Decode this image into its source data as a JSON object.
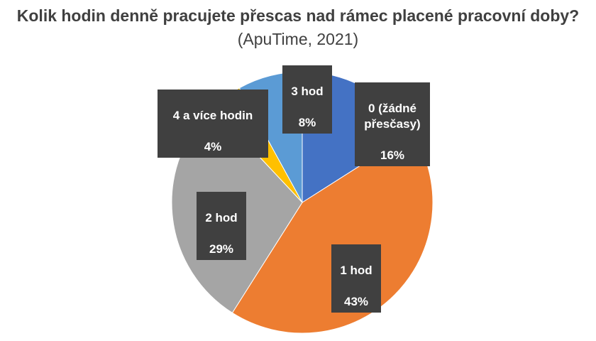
{
  "chart_data": {
    "type": "pie",
    "title_main": "Kolik hodin denně pracujete přescas nad rámec placené pracovní doby?",
    "title_source": "(ApuTime, 2021)",
    "categories": [
      "0 (žádné přesčasy)",
      "1 hod",
      "2 hod",
      "4 a více hodin",
      "3 hod"
    ],
    "values": [
      16,
      43,
      29,
      4,
      8
    ],
    "percent_labels": [
      "16%",
      "43%",
      "29%",
      "4%",
      "8%"
    ],
    "colors": [
      "#4472C4",
      "#ED7D31",
      "#A5A5A5",
      "#FFC000",
      "#5B9BD5"
    ],
    "start_angle_deg": 0,
    "direction": "clockwise"
  }
}
